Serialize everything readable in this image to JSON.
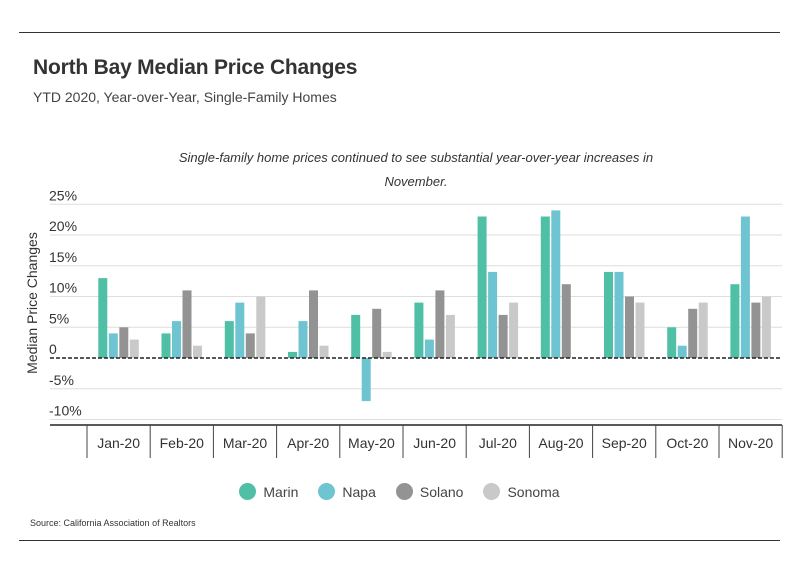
{
  "header": {
    "title": "North Bay Median Price Changes",
    "subtitle": "YTD 2020, Year-over-Year, Single-Family Homes"
  },
  "footer": {
    "source": "Source:  California Association of Realtors"
  },
  "chart_data": {
    "type": "bar",
    "annotation_lines": [
      "Single-family home prices continued to see substantial year-over-year increases in",
      "November."
    ],
    "ylabel": "Median Price Changes",
    "xlabel": "",
    "ylim": [
      -11,
      26
    ],
    "yticks": [
      25,
      20,
      15,
      10,
      5,
      0,
      -5,
      -10
    ],
    "ytick_labels": [
      "25%",
      "20%",
      "15%",
      "10%",
      "5%",
      "0",
      "-5%",
      "-10%"
    ],
    "grid": true,
    "legend_position": "bottom-center",
    "categories": [
      "Jan-20",
      "Feb-20",
      "Mar-20",
      "Apr-20",
      "May-20",
      "Jun-20",
      "Jul-20",
      "Aug-20",
      "Sep-20",
      "Oct-20",
      "Nov-20"
    ],
    "series": [
      {
        "name": "Marin",
        "color": "#4fbfa5",
        "values": [
          13,
          4,
          6,
          1,
          7,
          9,
          23,
          23,
          14,
          5,
          12
        ]
      },
      {
        "name": "Napa",
        "color": "#6ec4d1",
        "values": [
          4,
          6,
          9,
          6,
          -7,
          3,
          14,
          24,
          14,
          2,
          23
        ]
      },
      {
        "name": "Solano",
        "color": "#939393",
        "values": [
          5,
          11,
          4,
          11,
          8,
          11,
          7,
          12,
          10,
          8,
          9
        ]
      },
      {
        "name": "Sonoma",
        "color": "#c9c9c9",
        "values": [
          3,
          2,
          10,
          2,
          1,
          7,
          9,
          null,
          9,
          9,
          10
        ]
      }
    ]
  }
}
